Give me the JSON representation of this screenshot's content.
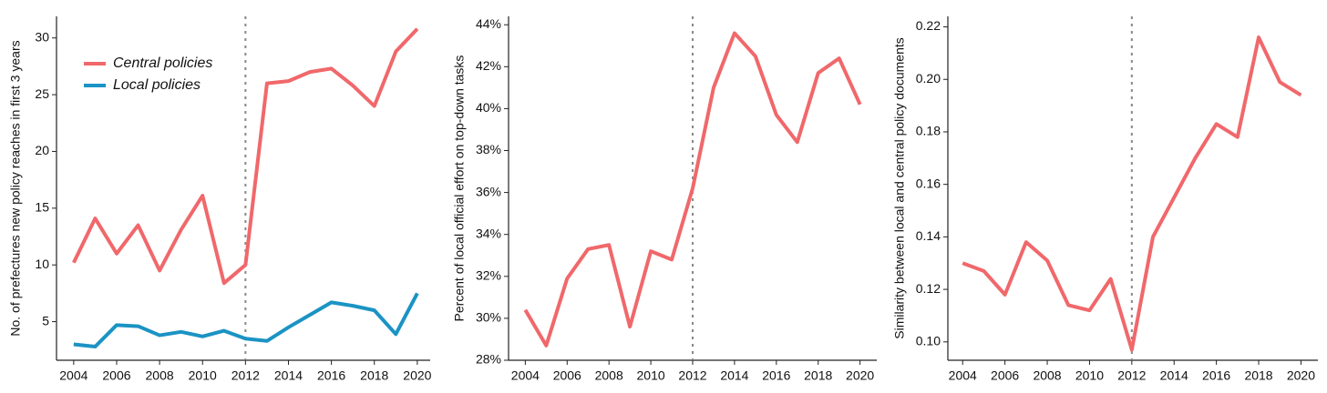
{
  "chart_data": [
    {
      "type": "line",
      "y_label": "No. of prefectures new policy reaches in first 3 years",
      "x": [
        2004,
        2005,
        2006,
        2007,
        2008,
        2009,
        2010,
        2011,
        2012,
        2013,
        2014,
        2015,
        2016,
        2017,
        2018,
        2019,
        2020
      ],
      "series": [
        {
          "name": "Central policies",
          "color": "#f0686b",
          "values": [
            10.2,
            14.1,
            11.0,
            13.5,
            9.5,
            13.1,
            16.1,
            8.4,
            10.0,
            26.0,
            26.2,
            27.0,
            27.3,
            25.8,
            24.0,
            28.8,
            30.8
          ]
        },
        {
          "name": "Local policies",
          "color": "#1b93c4",
          "values": [
            3.0,
            2.8,
            4.7,
            4.6,
            3.8,
            4.1,
            3.7,
            4.2,
            3.5,
            3.3,
            4.5,
            5.6,
            6.7,
            6.4,
            6.0,
            3.9,
            7.5
          ]
        }
      ],
      "xlim": [
        2003.2,
        2020.6
      ],
      "xticks": [
        2004,
        2006,
        2008,
        2010,
        2012,
        2014,
        2016,
        2018,
        2020
      ],
      "ylim": [
        1.6,
        31.9
      ],
      "yticks": [
        5,
        10,
        15,
        20,
        25,
        30
      ],
      "vline": 2012,
      "legend": "upper left"
    },
    {
      "type": "line",
      "y_label": "Percent of local official effort on top-down tasks",
      "x": [
        2004,
        2005,
        2006,
        2007,
        2008,
        2009,
        2010,
        2011,
        2012,
        2013,
        2014,
        2015,
        2016,
        2017,
        2018,
        2019,
        2020
      ],
      "series": [
        {
          "color": "#f0686b",
          "values": [
            30.4,
            28.7,
            31.9,
            33.3,
            33.5,
            29.6,
            33.2,
            32.8,
            36.2,
            41.0,
            43.6,
            42.5,
            39.7,
            38.4,
            41.7,
            42.4,
            40.2
          ]
        }
      ],
      "xlim": [
        2003.2,
        2020.8
      ],
      "xticks": [
        2004,
        2006,
        2008,
        2010,
        2012,
        2014,
        2016,
        2018,
        2020
      ],
      "ylim": [
        28,
        44.4
      ],
      "yticks": [
        {
          "value": 28,
          "label": "28%"
        },
        {
          "value": 30,
          "label": "30%"
        },
        {
          "value": 32,
          "label": "32%"
        },
        {
          "value": 34,
          "label": "34%"
        },
        {
          "value": 36,
          "label": "36%"
        },
        {
          "value": 38,
          "label": "38%"
        },
        {
          "value": 40,
          "label": "40%"
        },
        {
          "value": 42,
          "label": "42%"
        },
        {
          "value": 44,
          "label": "44%"
        }
      ],
      "vline": 2012
    },
    {
      "type": "line",
      "y_label": "Similarity between local and central policy documents",
      "x": [
        2004,
        2005,
        2006,
        2007,
        2008,
        2009,
        2010,
        2011,
        2012,
        2013,
        2014,
        2015,
        2016,
        2017,
        2018,
        2019,
        2020
      ],
      "series": [
        {
          "color": "#f0686b",
          "values": [
            0.13,
            0.127,
            0.118,
            0.138,
            0.131,
            0.114,
            0.112,
            0.124,
            0.097,
            0.14,
            0.155,
            0.17,
            0.183,
            0.178,
            0.216,
            0.199,
            0.194
          ]
        }
      ],
      "xlim": [
        2003.3,
        2020.8
      ],
      "xticks": [
        2004,
        2006,
        2008,
        2010,
        2012,
        2014,
        2016,
        2018,
        2020
      ],
      "ylim": [
        0.093,
        0.224
      ],
      "yticks": [
        {
          "value": 0.1,
          "label": "0.10"
        },
        {
          "value": 0.12,
          "label": "0.12"
        },
        {
          "value": 0.14,
          "label": "0.14"
        },
        {
          "value": 0.16,
          "label": "0.16"
        },
        {
          "value": 0.18,
          "label": "0.18"
        },
        {
          "value": 0.2,
          "label": "0.20"
        },
        {
          "value": 0.22,
          "label": "0.22"
        }
      ],
      "vline": 2012
    }
  ]
}
